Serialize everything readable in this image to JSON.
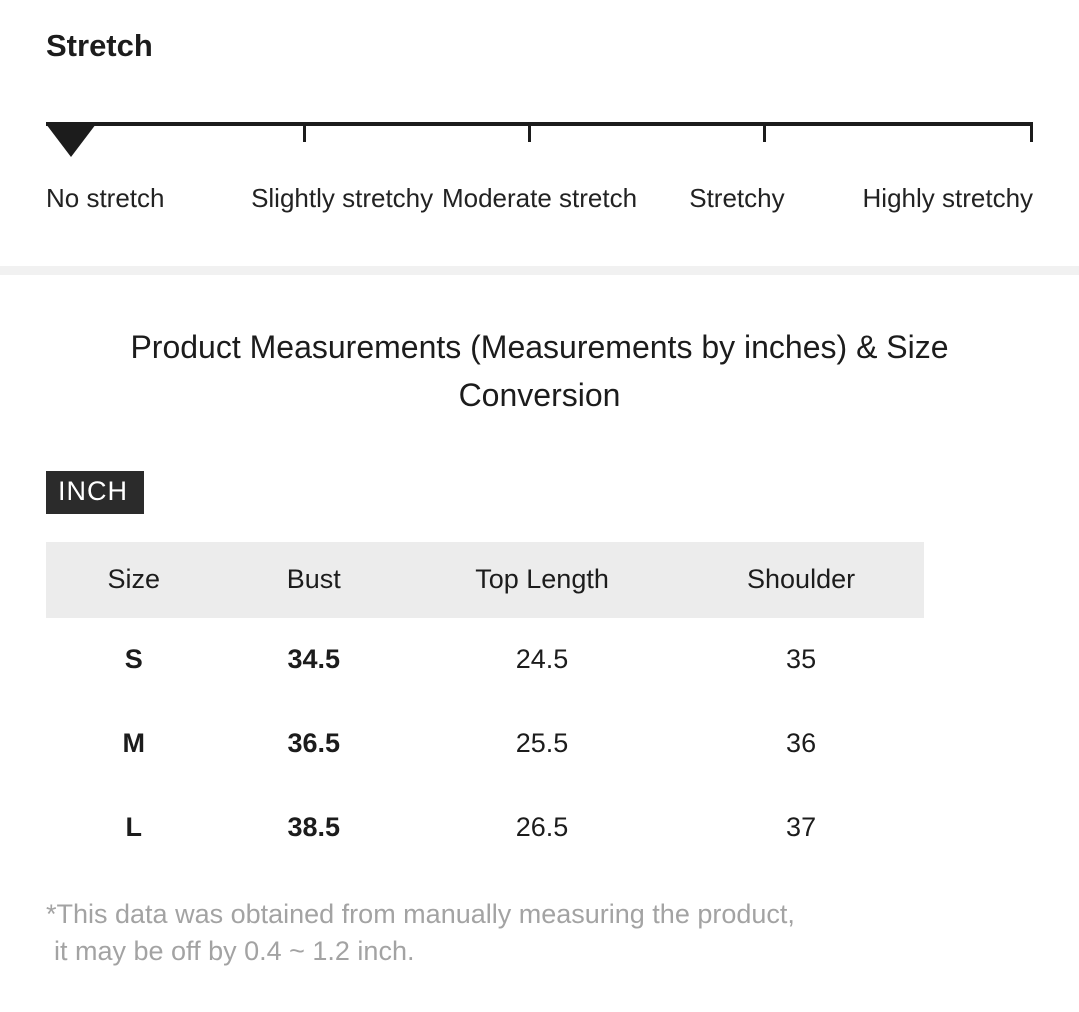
{
  "stretch": {
    "title": "Stretch",
    "levels": [
      "No stretch",
      "Slightly stretchy",
      "Moderate stretch",
      "Stretchy",
      "Highly stretchy"
    ],
    "selected_index": 0,
    "indicator_color": "#1c1c1c"
  },
  "measurements": {
    "title": "Product Measurements (Measurements by inches) & Size Conversion",
    "unit_badge": "INCH",
    "badge_bg": "#2b2b2b",
    "table": {
      "headers": [
        "Size",
        "Bust",
        "Top Length",
        "Shoulder"
      ],
      "rows": [
        [
          "S",
          "34.5",
          "24.5",
          "35"
        ],
        [
          "M",
          "36.5",
          "25.5",
          "36"
        ],
        [
          "L",
          "38.5",
          "26.5",
          "37"
        ]
      ]
    },
    "footnote_line1": "*This data was obtained from manually measuring the product,",
    "footnote_line2": "it may be off by 0.4 ~ 1.2 inch."
  }
}
